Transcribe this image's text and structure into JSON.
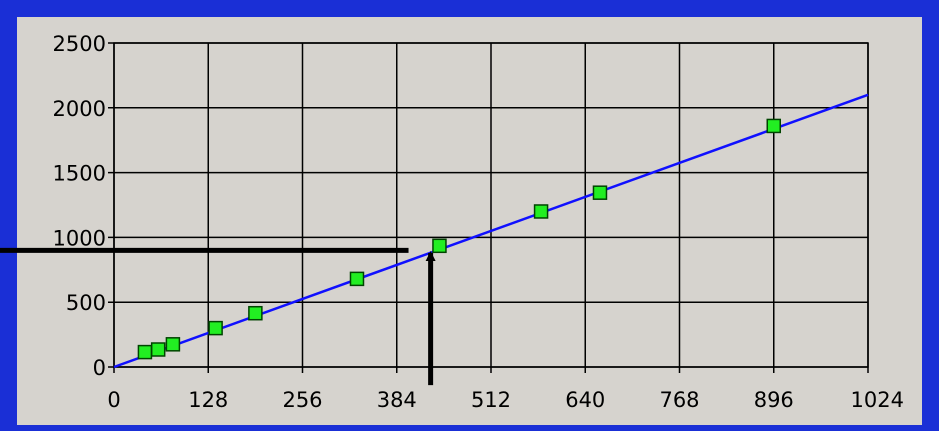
{
  "colors": {
    "frame": "#1a2fd6",
    "panel": "#d6d3ce",
    "grid": "#000000",
    "fit_line": "#1010ff",
    "marker_fill": "#22ee22",
    "marker_stroke": "#004400",
    "arrow": "#000000"
  },
  "chart_data": {
    "type": "scatter",
    "title": "",
    "xlabel": "",
    "ylabel": "",
    "xlim": [
      0,
      1024
    ],
    "ylim": [
      0,
      2500
    ],
    "x_ticks": [
      0,
      128,
      256,
      384,
      512,
      640,
      768,
      896,
      1024
    ],
    "y_ticks": [
      0,
      500,
      1000,
      1500,
      2000,
      2500
    ],
    "x_tick_labels": [
      "0",
      "128",
      "256",
      "384",
      "512",
      "640",
      "768",
      "896",
      "1024"
    ],
    "y_tick_labels": [
      "0",
      "500",
      "1000",
      "1500",
      "2000",
      "2500"
    ],
    "grid": true,
    "series": [
      {
        "kind": "points",
        "marker": "square",
        "x": [
          42,
          60,
          80,
          138,
          192,
          330,
          442,
          580,
          660,
          896
        ],
        "y": [
          115,
          135,
          175,
          300,
          415,
          680,
          935,
          1200,
          1345,
          1860
        ]
      },
      {
        "kind": "line",
        "x": [
          0,
          1024
        ],
        "y": [
          0,
          2100
        ]
      }
    ],
    "annotations": [
      {
        "type": "arrow",
        "from": [
          430,
          -140
        ],
        "to": [
          430,
          880
        ]
      },
      {
        "type": "arrow",
        "from": [
          400,
          900
        ],
        "to": [
          -175,
          900
        ]
      }
    ]
  }
}
